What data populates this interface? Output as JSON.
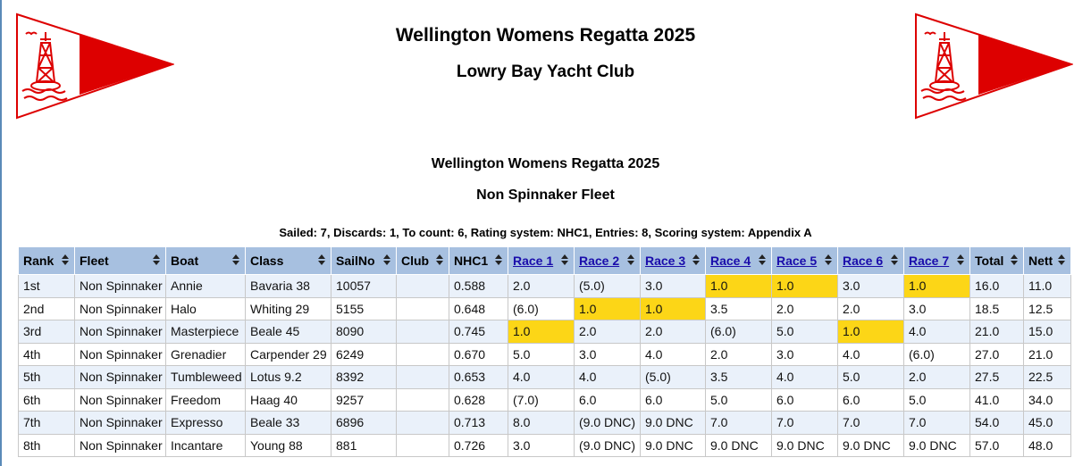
{
  "header": {
    "title": "Wellington Womens Regatta 2025",
    "club": "Lowry Bay Yacht Club"
  },
  "event": {
    "title": "Wellington Womens Regatta 2025",
    "fleet": "Non Spinnaker Fleet",
    "summary": "Sailed: 7, Discards: 1, To count: 6, Rating system: NHC1, Entries: 8, Scoring system: Appendix A"
  },
  "colors": {
    "burgee_red": "#dd0000",
    "header_bg": "#a7c0e0",
    "row_alt": "#eaf1fa",
    "race_win": "#fcd617"
  },
  "table": {
    "columns": [
      "Rank",
      "Fleet",
      "Boat",
      "Class",
      "SailNo",
      "Club",
      "NHC1",
      "Race 1",
      "Race 2",
      "Race 3",
      "Race 4",
      "Race 5",
      "Race 6",
      "Race 7",
      "Total",
      "Nett"
    ],
    "rows": [
      {
        "cells": [
          "1st",
          "Non Spinnaker",
          "Annie",
          "Bavaria 38",
          "10057",
          "",
          "0.588",
          "2.0",
          "(5.0)",
          "3.0",
          "1.0",
          "1.0",
          "3.0",
          "1.0",
          "16.0",
          "11.0"
        ],
        "wins": [
          10,
          11,
          13
        ]
      },
      {
        "cells": [
          "2nd",
          "Non Spinnaker",
          "Halo",
          "Whiting 29",
          "5155",
          "",
          "0.648",
          "(6.0)",
          "1.0",
          "1.0",
          "3.5",
          "2.0",
          "2.0",
          "3.0",
          "18.5",
          "12.5"
        ],
        "wins": [
          8,
          9
        ]
      },
      {
        "cells": [
          "3rd",
          "Non Spinnaker",
          "Masterpiece",
          "Beale 45",
          "8090",
          "",
          "0.745",
          "1.0",
          "2.0",
          "2.0",
          "(6.0)",
          "5.0",
          "1.0",
          "4.0",
          "21.0",
          "15.0"
        ],
        "wins": [
          7,
          12
        ]
      },
      {
        "cells": [
          "4th",
          "Non Spinnaker",
          "Grenadier",
          "Carpender 29",
          "6249",
          "",
          "0.670",
          "5.0",
          "3.0",
          "4.0",
          "2.0",
          "3.0",
          "4.0",
          "(6.0)",
          "27.0",
          "21.0"
        ],
        "wins": []
      },
      {
        "cells": [
          "5th",
          "Non Spinnaker",
          "Tumbleweed",
          "Lotus 9.2",
          "8392",
          "",
          "0.653",
          "4.0",
          "4.0",
          "(5.0)",
          "3.5",
          "4.0",
          "5.0",
          "2.0",
          "27.5",
          "22.5"
        ],
        "wins": []
      },
      {
        "cells": [
          "6th",
          "Non Spinnaker",
          "Freedom",
          "Haag 40",
          "9257",
          "",
          "0.628",
          "(7.0)",
          "6.0",
          "6.0",
          "5.0",
          "6.0",
          "6.0",
          "5.0",
          "41.0",
          "34.0"
        ],
        "wins": []
      },
      {
        "cells": [
          "7th",
          "Non Spinnaker",
          "Expresso",
          "Beale 33",
          "6896",
          "",
          "0.713",
          "8.0",
          "(9.0 DNC)",
          "9.0 DNC",
          "7.0",
          "7.0",
          "7.0",
          "7.0",
          "54.0",
          "45.0"
        ],
        "wins": []
      },
      {
        "cells": [
          "8th",
          "Non Spinnaker",
          "Incantare",
          "Young 88",
          "881",
          "",
          "0.726",
          "3.0",
          "(9.0 DNC)",
          "9.0 DNC",
          "9.0 DNC",
          "9.0 DNC",
          "9.0 DNC",
          "9.0 DNC",
          "57.0",
          "48.0"
        ],
        "wins": []
      }
    ]
  }
}
